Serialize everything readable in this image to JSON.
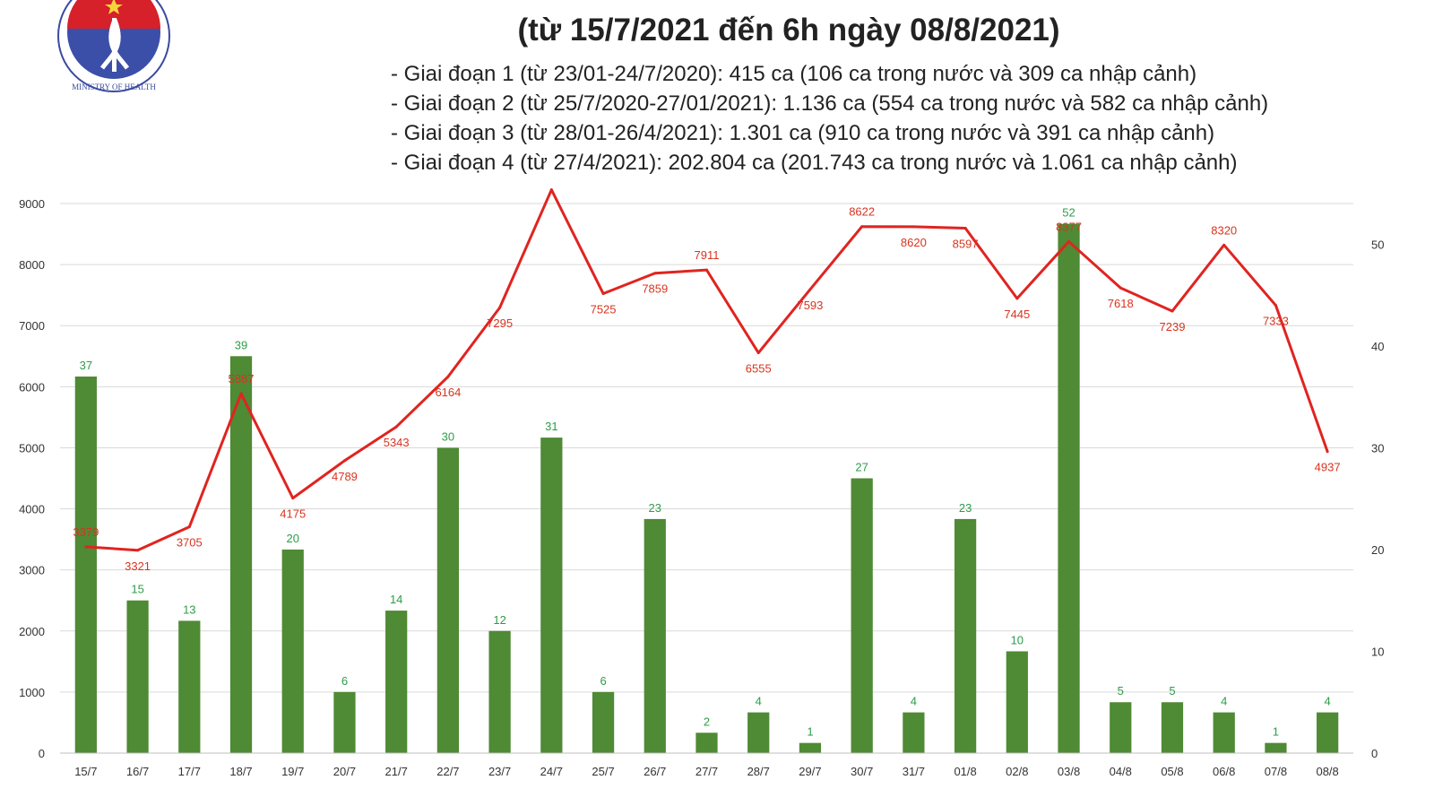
{
  "logo": {
    "text": "MINISTRY OF HEALTH"
  },
  "header": {
    "title": "(từ 15/7/2021 đến 6h ngày 08/8/2021)",
    "stages": [
      "- Giai đoạn 1 (từ 23/01-24/7/2020): 415 ca (106 ca trong nước và 309 ca nhập cảnh)",
      "- Giai đoạn 2 (từ 25/7/2020-27/01/2021): 1.136 ca (554 ca trong nước và 582 ca nhập cảnh)",
      "- Giai đoạn 3 (từ 28/01-26/4/2021): 1.301 ca (910 ca trong nước và 391 ca nhập cảnh)",
      "- Giai đoạn 4 (từ 27/4/2021): 202.804 ca (201.743 ca trong nước và 1.061 ca nhập cảnh)"
    ]
  },
  "colors": {
    "bar": "#4f8a34",
    "line": "#e02420",
    "line_label": "#d8341f",
    "bar_label": "#2e9c4a",
    "grid": "#d9d9d9"
  },
  "chart_data": {
    "type": "bar+line",
    "categories": [
      "15/7",
      "16/7",
      "17/7",
      "18/7",
      "19/7",
      "20/7",
      "21/7",
      "22/7",
      "23/7",
      "24/7",
      "25/7",
      "26/7",
      "27/7",
      "28/7",
      "29/7",
      "30/7",
      "31/7",
      "01/8",
      "02/8",
      "03/8",
      "04/8",
      "05/8",
      "06/8",
      "07/8",
      "08/8"
    ],
    "series": [
      {
        "type": "bar",
        "axis": "right",
        "values": [
          37,
          15,
          13,
          39,
          20,
          6,
          14,
          30,
          12,
          31,
          6,
          23,
          2,
          4,
          1,
          27,
          4,
          23,
          10,
          52,
          5,
          5,
          4,
          1,
          4
        ]
      },
      {
        "type": "line",
        "axis": "left",
        "values": [
          3379,
          3321,
          3705,
          5887,
          4175,
          4789,
          5343,
          6164,
          7295,
          9225,
          7525,
          7859,
          7911,
          6555,
          7593,
          8622,
          8620,
          8597,
          7445,
          8377,
          7618,
          7239,
          8320,
          7333,
          4937
        ]
      }
    ],
    "yleft": {
      "min": 0,
      "max": 9000,
      "ticks": [
        0,
        1000,
        2000,
        3000,
        4000,
        5000,
        6000,
        7000,
        8000,
        9000
      ]
    },
    "yright": {
      "min": 0,
      "max": 54,
      "ticks": [
        0,
        10,
        20,
        30,
        40,
        50
      ]
    },
    "grid": true,
    "legend": "none"
  }
}
